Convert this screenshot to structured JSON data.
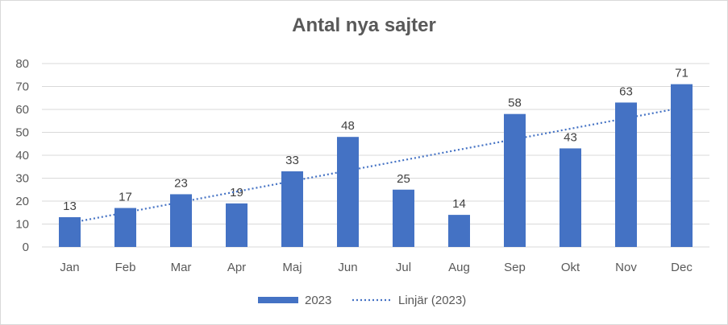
{
  "chart_data": {
    "type": "bar",
    "title": "Antal nya sajter",
    "xlabel": "",
    "ylabel": "",
    "categories": [
      "Jan",
      "Feb",
      "Mar",
      "Apr",
      "Maj",
      "Jun",
      "Jul",
      "Aug",
      "Sep",
      "Okt",
      "Nov",
      "Dec"
    ],
    "series": [
      {
        "name": "2023",
        "values": [
          13,
          17,
          23,
          19,
          33,
          48,
          25,
          14,
          58,
          43,
          63,
          71
        ],
        "color": "#4472c4"
      }
    ],
    "trendline": {
      "name": "Linjär (2023)",
      "type": "linear",
      "color": "#4472c4",
      "style": "dotted"
    },
    "ylim": [
      0,
      80
    ],
    "yticks": [
      0,
      10,
      20,
      30,
      40,
      50,
      60,
      70,
      80
    ],
    "grid": true,
    "data_labels": true,
    "legend": "bottom"
  }
}
